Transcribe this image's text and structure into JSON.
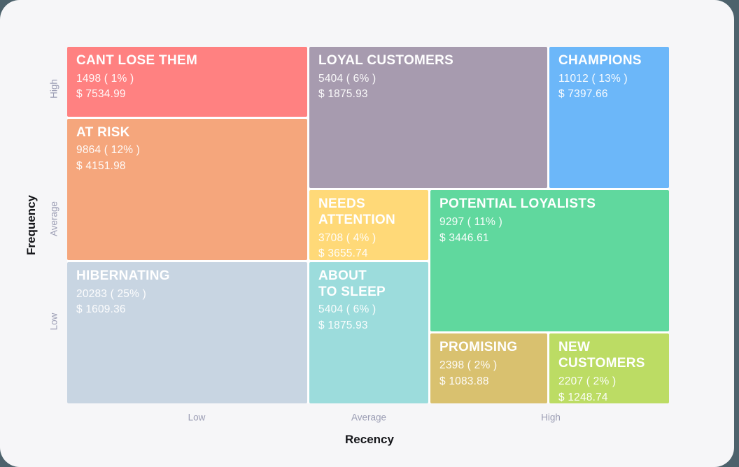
{
  "colors": {
    "page_background": "#4D626C",
    "card_background": "#F6F6F8",
    "grid_gap": "#FFFFFF",
    "axis_title": "#15161A",
    "tick_label": "#9B9DB4"
  },
  "x_axis": {
    "title": "Recency",
    "ticks": [
      "Low",
      "Average",
      "High"
    ]
  },
  "y_axis": {
    "title": "Frequency",
    "ticks": [
      "High",
      "Average",
      "Low"
    ]
  },
  "segments": [
    {
      "title": "CANT LOSE THEM",
      "count": "1498 ( 1% )",
      "monetary": "$ 7534.99",
      "color": "#FF8181"
    },
    {
      "title": "AT RISK",
      "count": "9864 ( 12% )",
      "monetary": "$ 4151.98",
      "color": "#F5A67C"
    },
    {
      "title": "LOYAL CUSTOMERS",
      "count": "5404 ( 6% )",
      "monetary": "$ 1875.93",
      "color": "#A79BAF"
    },
    {
      "title": "CHAMPIONS",
      "count": "11012 ( 13% )",
      "monetary": "$ 7397.66",
      "color": "#6CB7F9"
    },
    {
      "title": "NEEDS\nATTENTION",
      "count": "3708 ( 4% )",
      "monetary": "$ 3655.74",
      "color": "#FFD978"
    },
    {
      "title": "POTENTIAL LOYALISTS",
      "count": "9297 ( 11% )",
      "monetary": "$ 3446.61",
      "color": "#60D89E"
    },
    {
      "title": "HIBERNATING",
      "count": "20283 ( 25% )",
      "monetary": "$ 1609.36",
      "color": "#C8D5E2"
    },
    {
      "title": "ABOUT\nTO SLEEP",
      "count": "5404 ( 6% )",
      "monetary": "$ 1875.93",
      "color": "#9CDCDC"
    },
    {
      "title": "PROMISING",
      "count": "2398 ( 2% )",
      "monetary": "$ 1083.88",
      "color": "#D9C16F"
    },
    {
      "title": "NEW\nCUSTOMERS",
      "count": "2207 ( 2% )",
      "monetary": "$ 1248.74",
      "color": "#BCDC64"
    }
  ],
  "chart_data": {
    "type": "treemap",
    "title": "RFM customer segmentation matrix",
    "xlabel": "Recency",
    "ylabel": "Frequency",
    "x_tick_labels": [
      "Low",
      "Average",
      "High"
    ],
    "y_tick_labels": [
      "High",
      "Average",
      "Low"
    ],
    "legend": "none",
    "segments": [
      {
        "name": "CANT LOSE THEM",
        "customers": 1498,
        "percent": 1,
        "avg_value": 7534.99,
        "recency": "Low",
        "frequency": "High"
      },
      {
        "name": "AT RISK",
        "customers": 9864,
        "percent": 12,
        "avg_value": 4151.98,
        "recency": "Low",
        "frequency": "Average"
      },
      {
        "name": "LOYAL CUSTOMERS",
        "customers": 5404,
        "percent": 6,
        "avg_value": 1875.93,
        "recency": "Average",
        "frequency": "High"
      },
      {
        "name": "CHAMPIONS",
        "customers": 11012,
        "percent": 13,
        "avg_value": 7397.66,
        "recency": "High",
        "frequency": "High"
      },
      {
        "name": "NEEDS ATTENTION",
        "customers": 3708,
        "percent": 4,
        "avg_value": 3655.74,
        "recency": "Average",
        "frequency": "Average"
      },
      {
        "name": "POTENTIAL LOYALISTS",
        "customers": 9297,
        "percent": 11,
        "avg_value": 3446.61,
        "recency": "High",
        "frequency": "Average"
      },
      {
        "name": "HIBERNATING",
        "customers": 20283,
        "percent": 25,
        "avg_value": 1609.36,
        "recency": "Low",
        "frequency": "Low"
      },
      {
        "name": "ABOUT TO SLEEP",
        "customers": 5404,
        "percent": 6,
        "avg_value": 1875.93,
        "recency": "Average",
        "frequency": "Low"
      },
      {
        "name": "PROMISING",
        "customers": 2398,
        "percent": 2,
        "avg_value": 1083.88,
        "recency": "High",
        "frequency": "Low"
      },
      {
        "name": "NEW CUSTOMERS",
        "customers": 2207,
        "percent": 2,
        "avg_value": 1248.74,
        "recency": "High",
        "frequency": "Low"
      }
    ]
  }
}
